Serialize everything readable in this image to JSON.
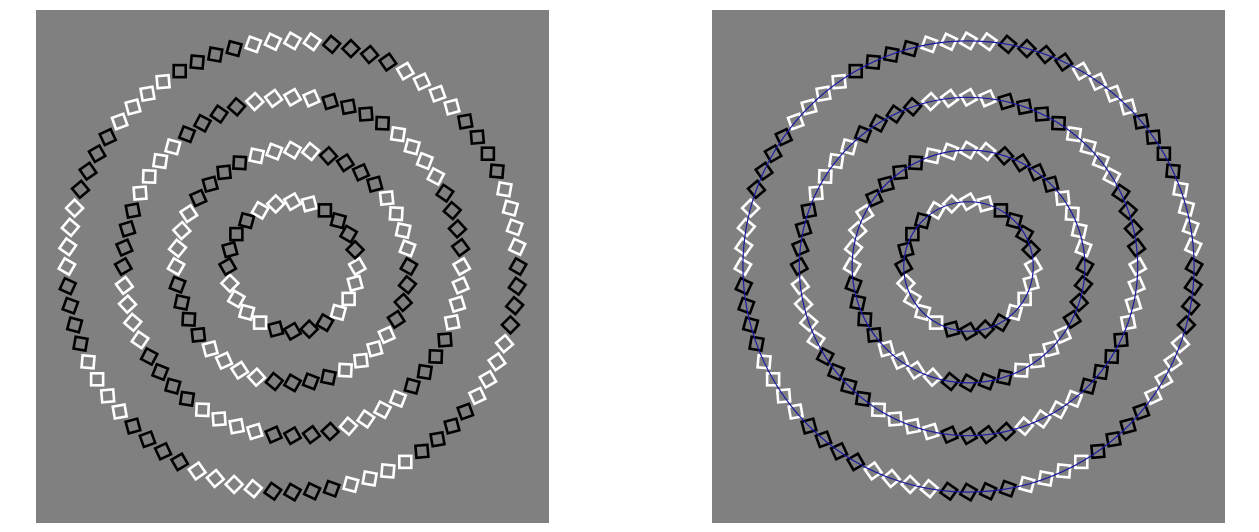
{
  "colors": {
    "background": "#808080",
    "light_square": "#ffffff",
    "dark_square": "#000000",
    "guide_circle": "#1a1aa0"
  },
  "illusion": {
    "rings": [
      {
        "name": "ring-1",
        "radius_ratio": 0.27,
        "squares": 24
      },
      {
        "name": "ring-2",
        "radius_ratio": 0.485,
        "squares": 40
      },
      {
        "name": "ring-3",
        "radius_ratio": 0.705,
        "squares": 56
      },
      {
        "name": "ring-4",
        "radius_ratio": 0.94,
        "squares": 72
      }
    ],
    "color_group_size": 4,
    "tilt_degrees": 15
  },
  "panels": [
    {
      "name": "left-panel",
      "guide_circles": false
    },
    {
      "name": "right-panel",
      "guide_circles": true
    }
  ]
}
